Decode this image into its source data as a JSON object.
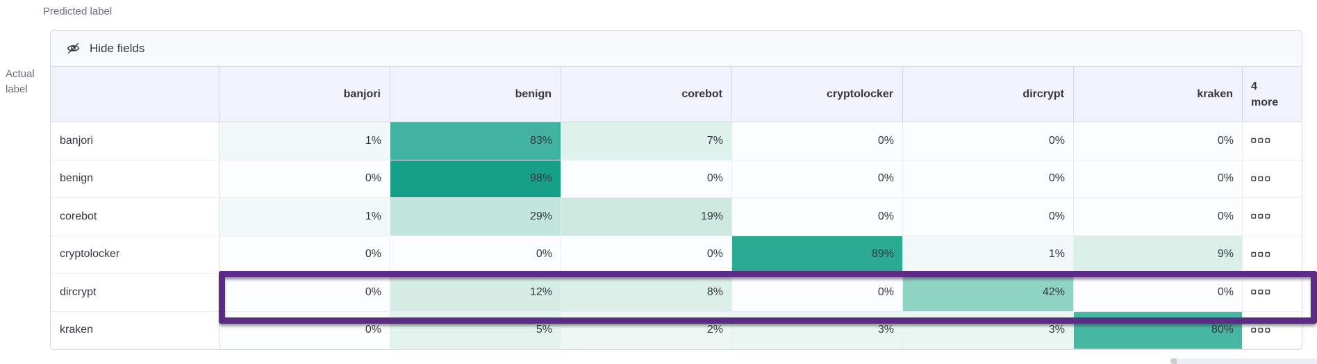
{
  "axes": {
    "predicted_label": "Predicted label",
    "actual_label_line1": "Actual",
    "actual_label_line2": "label"
  },
  "toolbar": {
    "hide_fields_label": "Hide fields",
    "icon": "eye-closed-icon"
  },
  "more_column": {
    "line1": "4",
    "line2": "more",
    "row_icon": "boxes-horizontal-icon"
  },
  "columns": [
    "banjori",
    "benign",
    "corebot",
    "cryptolocker",
    "dircrypt",
    "kraken"
  ],
  "rows": [
    {
      "label": "banjori",
      "cells": [
        {
          "v": "1%",
          "c": "#f3f8fa"
        },
        {
          "v": "83%",
          "c": "#40b4a0"
        },
        {
          "v": "7%",
          "c": "#def1ea"
        },
        {
          "v": "0%",
          "c": "#fbfdfe"
        },
        {
          "v": "0%",
          "c": "#fbfdfe"
        },
        {
          "v": "0%",
          "c": "#fbfdfe"
        }
      ]
    },
    {
      "label": "benign",
      "cells": [
        {
          "v": "0%",
          "c": "#fbfdfe"
        },
        {
          "v": "98%",
          "c": "#17a088"
        },
        {
          "v": "0%",
          "c": "#fbfdfe"
        },
        {
          "v": "0%",
          "c": "#fbfdfe"
        },
        {
          "v": "0%",
          "c": "#fbfdfe"
        },
        {
          "v": "0%",
          "c": "#fbfdfe"
        }
      ]
    },
    {
      "label": "corebot",
      "cells": [
        {
          "v": "1%",
          "c": "#f3f8fa"
        },
        {
          "v": "29%",
          "c": "#c2e6db"
        },
        {
          "v": "19%",
          "c": "#cde9e0"
        },
        {
          "v": "0%",
          "c": "#fbfdfe"
        },
        {
          "v": "0%",
          "c": "#fbfdfe"
        },
        {
          "v": "0%",
          "c": "#fbfdfe"
        }
      ]
    },
    {
      "label": "cryptolocker",
      "cells": [
        {
          "v": "0%",
          "c": "#fbfdfe"
        },
        {
          "v": "0%",
          "c": "#fbfdfe"
        },
        {
          "v": "0%",
          "c": "#fbfdfe"
        },
        {
          "v": "89%",
          "c": "#2cab94"
        },
        {
          "v": "1%",
          "c": "#f3f8fa"
        },
        {
          "v": "9%",
          "c": "#d9efe7"
        }
      ]
    },
    {
      "label": "dircrypt",
      "cells": [
        {
          "v": "0%",
          "c": "#fbfdfe"
        },
        {
          "v": "12%",
          "c": "#d5ede5"
        },
        {
          "v": "8%",
          "c": "#dcf0e9"
        },
        {
          "v": "0%",
          "c": "#fbfdfe"
        },
        {
          "v": "42%",
          "c": "#8fd4c2"
        },
        {
          "v": "0%",
          "c": "#fbfdfe"
        }
      ]
    },
    {
      "label": "kraken",
      "cells": [
        {
          "v": "0%",
          "c": "#fbfdfe"
        },
        {
          "v": "5%",
          "c": "#e3f3ed"
        },
        {
          "v": "2%",
          "c": "#eef7f4"
        },
        {
          "v": "3%",
          "c": "#eaf6f1"
        },
        {
          "v": "3%",
          "c": "#eaf6f1"
        },
        {
          "v": "80%",
          "c": "#47b7a3"
        }
      ]
    }
  ],
  "highlight": {
    "row": "dircrypt",
    "color": "#5c2b85"
  },
  "colors": {
    "heat_max": "#17a088",
    "header_bg": "#f0f3f9",
    "toolbar_bg": "#f7f9fc",
    "border": "#d3dae6"
  },
  "chart_data": {
    "type": "heatmap",
    "title": "Confusion matrix (normalized %)",
    "xlabel": "Predicted label",
    "ylabel": "Actual label",
    "x_categories": [
      "banjori",
      "benign",
      "corebot",
      "cryptolocker",
      "dircrypt",
      "kraken"
    ],
    "y_categories": [
      "banjori",
      "benign",
      "corebot",
      "cryptolocker",
      "dircrypt",
      "kraken"
    ],
    "values_percent": [
      [
        1,
        83,
        7,
        0,
        0,
        0
      ],
      [
        0,
        98,
        0,
        0,
        0,
        0
      ],
      [
        1,
        29,
        19,
        0,
        0,
        0
      ],
      [
        0,
        0,
        0,
        89,
        1,
        9
      ],
      [
        0,
        12,
        8,
        0,
        42,
        0
      ],
      [
        0,
        5,
        2,
        3,
        3,
        80
      ]
    ],
    "hidden_columns_note": "4 more",
    "highlighted_row": "dircrypt"
  }
}
